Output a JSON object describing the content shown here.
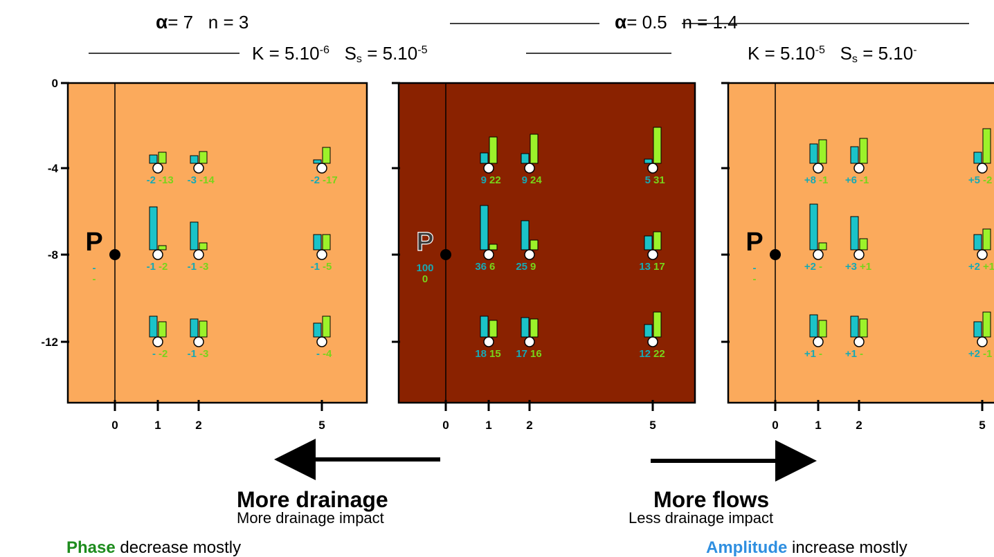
{
  "header": {
    "left_alpha": "α",
    "left_alpha_val": "= 7",
    "left_n": "n = 3",
    "left_K_base": "K = 5.10",
    "left_K_exp": "-6",
    "left_Ss_S": "S",
    "left_Ss_sub": "s",
    "left_Ss_base": " = 5.10",
    "left_Ss_exp": "-5",
    "right_alpha": "α",
    "right_alpha_val": "= 0.5",
    "right_n": "n = 1.4",
    "right_K_base": "K = 5.10",
    "right_K_exp": "-5",
    "right_Ss_S": "S",
    "right_Ss_sub": "s",
    "right_Ss_base": " = 5.10",
    "right_Ss_exp": "-"
  },
  "y_ticks": [
    "0",
    "-4",
    "-8",
    "-12"
  ],
  "x_ticks": [
    "0",
    "1",
    "2",
    "5"
  ],
  "colors": {
    "light_panel": "#fbaa5c",
    "dark_panel": "#8a2200",
    "amplitude_bar": "#1bc3c8",
    "phase_bar": "#9cf22a",
    "amplitude_label": "#17a9b4",
    "phase_label": "#78d41a"
  },
  "panels": [
    {
      "id": "left",
      "well_label": "P",
      "well_values": [
        "-",
        "-"
      ],
      "gauges": [
        {
          "col": 1,
          "row": -4,
          "amp": "-2",
          "phase": "-13",
          "amp_bar": 12,
          "phase_bar": 16
        },
        {
          "col": 2,
          "row": -4,
          "amp": "-3",
          "phase": "-14",
          "amp_bar": 11,
          "phase_bar": 17
        },
        {
          "col": 5,
          "row": -4,
          "amp": "-2",
          "phase": "-17",
          "amp_bar": 5,
          "phase_bar": 23
        },
        {
          "col": 1,
          "row": -8,
          "amp": "-1",
          "phase": "-2",
          "amp_bar": 62,
          "phase_bar": 6
        },
        {
          "col": 2,
          "row": -8,
          "amp": "-1",
          "phase": "-3",
          "amp_bar": 40,
          "phase_bar": 10
        },
        {
          "col": 5,
          "row": -8,
          "amp": "-1",
          "phase": "-5",
          "amp_bar": 22,
          "phase_bar": 22
        },
        {
          "col": 1,
          "row": -12,
          "amp": "-",
          "phase": "-2",
          "amp_bar": 30,
          "phase_bar": 22
        },
        {
          "col": 2,
          "row": -12,
          "amp": "-1",
          "phase": "-3",
          "amp_bar": 26,
          "phase_bar": 23
        },
        {
          "col": 5,
          "row": -12,
          "amp": "-",
          "phase": "-4",
          "amp_bar": 20,
          "phase_bar": 30
        }
      ]
    },
    {
      "id": "middle",
      "well_label": "P",
      "well_values": [
        "100",
        "0"
      ],
      "gauges": [
        {
          "col": 1,
          "row": -4,
          "amp": "9",
          "phase": "22",
          "amp_bar": 15,
          "phase_bar": 38
        },
        {
          "col": 2,
          "row": -4,
          "amp": "9",
          "phase": "24",
          "amp_bar": 14,
          "phase_bar": 42
        },
        {
          "col": 5,
          "row": -4,
          "amp": "5",
          "phase": "31",
          "amp_bar": 6,
          "phase_bar": 52
        },
        {
          "col": 1,
          "row": -8,
          "amp": "36",
          "phase": "6",
          "amp_bar": 64,
          "phase_bar": 8
        },
        {
          "col": 2,
          "row": -8,
          "amp": "25",
          "phase": "9",
          "amp_bar": 42,
          "phase_bar": 14
        },
        {
          "col": 5,
          "row": -8,
          "amp": "13",
          "phase": "17",
          "amp_bar": 20,
          "phase_bar": 26
        },
        {
          "col": 1,
          "row": -12,
          "amp": "18",
          "phase": "15",
          "amp_bar": 30,
          "phase_bar": 24
        },
        {
          "col": 2,
          "row": -12,
          "amp": "17",
          "phase": "16",
          "amp_bar": 28,
          "phase_bar": 26
        },
        {
          "col": 5,
          "row": -12,
          "amp": "12",
          "phase": "22",
          "amp_bar": 18,
          "phase_bar": 36
        }
      ]
    },
    {
      "id": "right",
      "well_label": "P",
      "well_values": [
        "-",
        "-"
      ],
      "gauges": [
        {
          "col": 1,
          "row": -4,
          "amp": "+8",
          "phase": "-1",
          "amp_bar": 28,
          "phase_bar": 34
        },
        {
          "col": 2,
          "row": -4,
          "amp": "+6",
          "phase": "-1",
          "amp_bar": 24,
          "phase_bar": 36
        },
        {
          "col": 5,
          "row": -4,
          "amp": "+5",
          "phase": "-2",
          "amp_bar": 16,
          "phase_bar": 50
        },
        {
          "col": 1,
          "row": -8,
          "amp": "+2",
          "phase": "-",
          "amp_bar": 66,
          "phase_bar": 10
        },
        {
          "col": 2,
          "row": -8,
          "amp": "+3",
          "phase": "+1",
          "amp_bar": 48,
          "phase_bar": 16
        },
        {
          "col": 5,
          "row": -8,
          "amp": "+2",
          "phase": "+1",
          "amp_bar": 22,
          "phase_bar": 30
        },
        {
          "col": 1,
          "row": -12,
          "amp": "+1",
          "phase": "-",
          "amp_bar": 32,
          "phase_bar": 24
        },
        {
          "col": 2,
          "row": -12,
          "amp": "+1",
          "phase": "-",
          "amp_bar": 30,
          "phase_bar": 26
        },
        {
          "col": 5,
          "row": -12,
          "amp": "+2",
          "phase": "-1",
          "amp_bar": 22,
          "phase_bar": 36
        }
      ]
    }
  ],
  "bottom": {
    "left_title": "More drainage",
    "left_sub": "More drainage impact",
    "left_note_key": "Phase",
    "left_note_rest": " decrease mostly",
    "right_title": "More flows",
    "right_sub": "Less drainage impact",
    "right_note_key": "Amplitude",
    "right_note_rest": " increase mostly"
  }
}
